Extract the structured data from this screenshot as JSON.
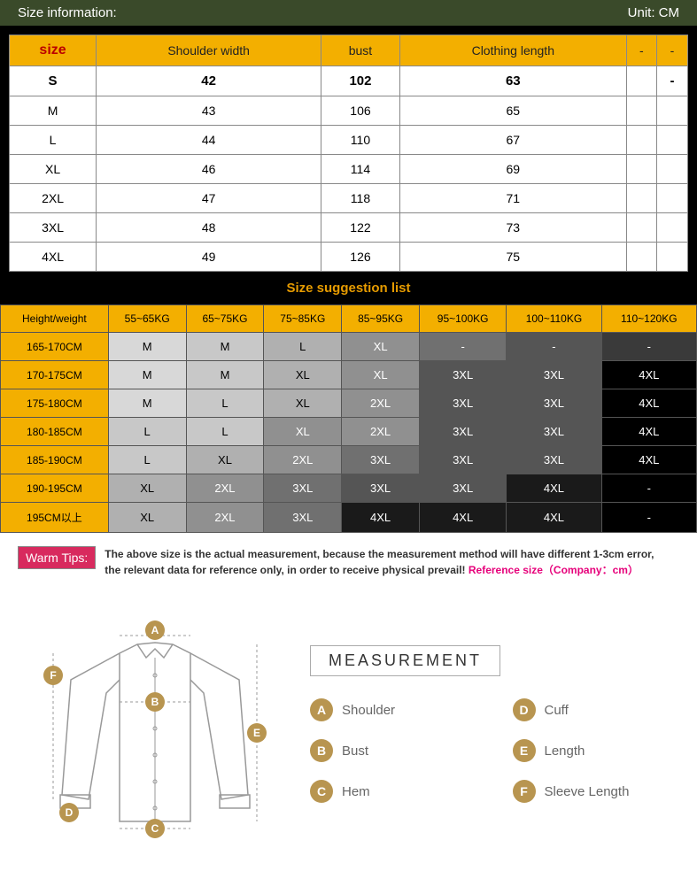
{
  "header": {
    "title": "Size information:",
    "unit": "Unit: CM"
  },
  "sizeTable": {
    "columns": [
      "size",
      "Shoulder width",
      "bust",
      "Clothing length",
      "-",
      "-"
    ],
    "rows": [
      {
        "cells": [
          "S",
          "42",
          "102",
          "63",
          "",
          "-"
        ],
        "highlight": true
      },
      {
        "cells": [
          "M",
          "43",
          "106",
          "65",
          "",
          ""
        ],
        "highlight": false
      },
      {
        "cells": [
          "L",
          "44",
          "110",
          "67",
          "",
          ""
        ],
        "highlight": false
      },
      {
        "cells": [
          "XL",
          "46",
          "114",
          "69",
          "",
          ""
        ],
        "highlight": false
      },
      {
        "cells": [
          "2XL",
          "47",
          "118",
          "71",
          "",
          ""
        ],
        "highlight": false
      },
      {
        "cells": [
          "3XL",
          "48",
          "122",
          "73",
          "",
          ""
        ],
        "highlight": false
      },
      {
        "cells": [
          "4XL",
          "49",
          "126",
          "75",
          "",
          ""
        ],
        "highlight": false
      }
    ]
  },
  "suggestTitle": "Size suggestion list",
  "suggestTable": {
    "columns": [
      "Height/weight",
      "55~65KG",
      "65~75KG",
      "75~85KG",
      "85~95KG",
      "95~100KG",
      "100~110KG",
      "110~120KG"
    ],
    "shades": [
      "#d8d8d8",
      "#c8c8c8",
      "#b0b0b0",
      "#909090",
      "#707070",
      "#555555",
      "#3a3a3a",
      "#1a1a1a",
      "#000000"
    ],
    "rows": [
      {
        "head": "165-170CM",
        "cells": [
          [
            "M",
            0
          ],
          [
            "M",
            1
          ],
          [
            "L",
            2
          ],
          [
            "XL",
            3
          ],
          [
            "-",
            4
          ],
          [
            "-",
            5
          ],
          [
            "-",
            6
          ]
        ]
      },
      {
        "head": "170-175CM",
        "cells": [
          [
            "M",
            0
          ],
          [
            "M",
            1
          ],
          [
            "XL",
            2
          ],
          [
            "XL",
            3
          ],
          [
            "3XL",
            5
          ],
          [
            "3XL",
            5
          ],
          [
            "4XL",
            8
          ]
        ]
      },
      {
        "head": "175-180CM",
        "cells": [
          [
            "M",
            0
          ],
          [
            "L",
            1
          ],
          [
            "XL",
            2
          ],
          [
            "2XL",
            3
          ],
          [
            "3XL",
            5
          ],
          [
            "3XL",
            5
          ],
          [
            "4XL",
            8
          ]
        ]
      },
      {
        "head": "180-185CM",
        "cells": [
          [
            "L",
            1
          ],
          [
            "L",
            1
          ],
          [
            "XL",
            3
          ],
          [
            "2XL",
            3
          ],
          [
            "3XL",
            5
          ],
          [
            "3XL",
            5
          ],
          [
            "4XL",
            8
          ]
        ]
      },
      {
        "head": "185-190CM",
        "cells": [
          [
            "L",
            1
          ],
          [
            "XL",
            2
          ],
          [
            "2XL",
            3
          ],
          [
            "3XL",
            4
          ],
          [
            "3XL",
            5
          ],
          [
            "3XL",
            5
          ],
          [
            "4XL",
            8
          ]
        ]
      },
      {
        "head": "190-195CM",
        "cells": [
          [
            "XL",
            2
          ],
          [
            "2XL",
            3
          ],
          [
            "3XL",
            4
          ],
          [
            "3XL",
            5
          ],
          [
            "3XL",
            5
          ],
          [
            "4XL",
            7
          ],
          [
            "-",
            8
          ]
        ]
      },
      {
        "head": "195CM以上",
        "cells": [
          [
            "XL",
            2
          ],
          [
            "2XL",
            3
          ],
          [
            "3XL",
            4
          ],
          [
            "4XL",
            7
          ],
          [
            "4XL",
            7
          ],
          [
            "4XL",
            7
          ],
          [
            "-",
            8
          ]
        ]
      }
    ]
  },
  "tips": {
    "badge": "Warm Tips:",
    "line1": "The above size is the actual measurement, because the measurement method will have different 1-3cm error,",
    "line2": "the relevant data for reference only, in order to receive physical prevail!",
    "ref": "Reference size（Company：cm）"
  },
  "measurement": {
    "title": "MEASUREMENT",
    "items": [
      {
        "letter": "A",
        "label": "Shoulder"
      },
      {
        "letter": "D",
        "label": "Cuff"
      },
      {
        "letter": "B",
        "label": "Bust"
      },
      {
        "letter": "E",
        "label": "Length"
      },
      {
        "letter": "C",
        "label": "Hem"
      },
      {
        "letter": "F",
        "label": "Sleeve Length"
      }
    ],
    "badgeColor": "#b89550"
  },
  "shirt": {
    "stroke": "#999999",
    "badgeColor": "#b89550",
    "labels": [
      "A",
      "B",
      "C",
      "D",
      "E",
      "F"
    ]
  }
}
